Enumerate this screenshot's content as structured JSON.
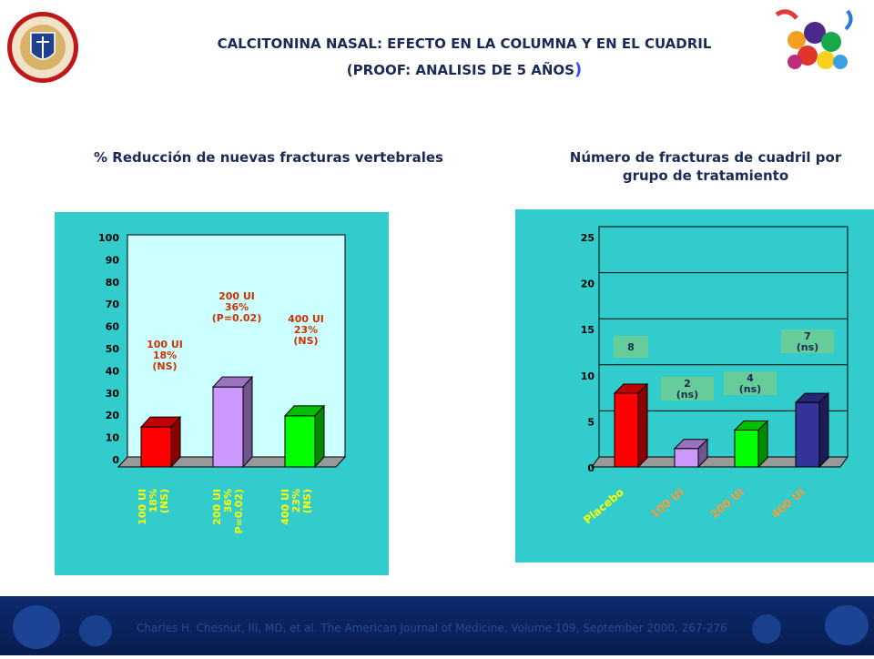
{
  "header": {
    "title_line1": "CALCITONINA NASAL: EFECTO EN LA COLUMNA Y EN EL CUADRIL",
    "title_line2": "(PROOF: ANALISIS DE 5 AÑOS",
    "title_line2_close": ")"
  },
  "subtitles": {
    "left": "% Reducción de nuevas fracturas vertebrales",
    "right_line1": "Número de fracturas de cuadril por",
    "right_line2": "grupo de tratamiento"
  },
  "footer": {
    "citation": "Charles H. Chesnut, III, MD, et al. The American Journal of Medicine, Volume 109, September 2000, 267-276"
  },
  "colors": {
    "panel": "#33cccc",
    "plot_bg": "#ccffff",
    "red": "#ff0000",
    "lavender": "#cc99ff",
    "green": "#00ff00",
    "navy": "#333399",
    "annotation": "#cc3300",
    "tick_label_yellow": "#ffff00",
    "tick_label_orange": "#ff9933",
    "label_box": "#66cc99"
  },
  "chart_data": [
    {
      "type": "bar",
      "title": "% Reducción de nuevas fracturas vertebrales",
      "categories": [
        [
          "100 UI",
          "18%",
          "(NS)"
        ],
        [
          "200 UI",
          "36%",
          "P=0.02)"
        ],
        [
          "400 UI",
          "23%",
          "(NS)"
        ]
      ],
      "values": [
        18,
        36,
        23
      ],
      "ylim": [
        0,
        100
      ],
      "yticks": [
        0,
        10,
        20,
        30,
        40,
        50,
        60,
        70,
        80,
        90,
        100
      ],
      "annotations": [
        [
          "100 UI",
          "18%",
          "(NS)"
        ],
        [
          "200 UI",
          "36%",
          "(P=0.02)"
        ],
        [
          "400 UI",
          "23%",
          "(NS)"
        ]
      ],
      "grid": false
    },
    {
      "type": "bar",
      "title": "Número de fracturas de cuadril por grupo de tratamiento",
      "categories": [
        "Placebo",
        "100 UI",
        "200 UI",
        "400 UI"
      ],
      "values": [
        8,
        2,
        4,
        7
      ],
      "ylim": [
        0,
        25
      ],
      "yticks": [
        0,
        5,
        10,
        15,
        20,
        25
      ],
      "annotations": [
        [
          "8"
        ],
        [
          "2",
          "(ns)"
        ],
        [
          "4",
          "(ns)"
        ],
        [
          "7",
          "(ns)"
        ]
      ],
      "grid": true
    }
  ]
}
